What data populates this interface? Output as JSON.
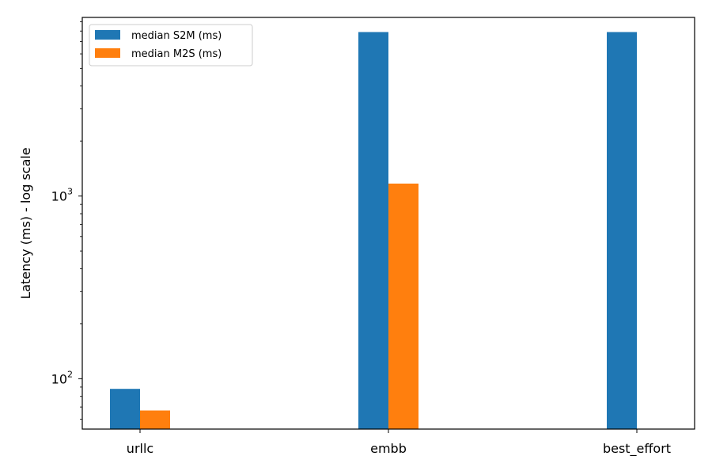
{
  "chart_data": {
    "type": "bar",
    "categories": [
      "urllc",
      "embb",
      "best_effort"
    ],
    "series": [
      {
        "name": "median S2M (ms)",
        "color": "#1f77b4",
        "values": [
          88,
          7900,
          7900
        ]
      },
      {
        "name": "median M2S (ms)",
        "color": "#ff7f0e",
        "values": [
          67,
          1170,
          null
        ]
      }
    ],
    "ylabel": "Latency (ms) - log scale",
    "xlabel": "",
    "yscale": "log",
    "ylim": [
      53,
      9500
    ],
    "yticks": [
      {
        "value": 100,
        "base": "10",
        "exp": "2"
      },
      {
        "value": 1000,
        "base": "10",
        "exp": "3"
      }
    ],
    "legend_position": "upper-left",
    "grid": false
  }
}
